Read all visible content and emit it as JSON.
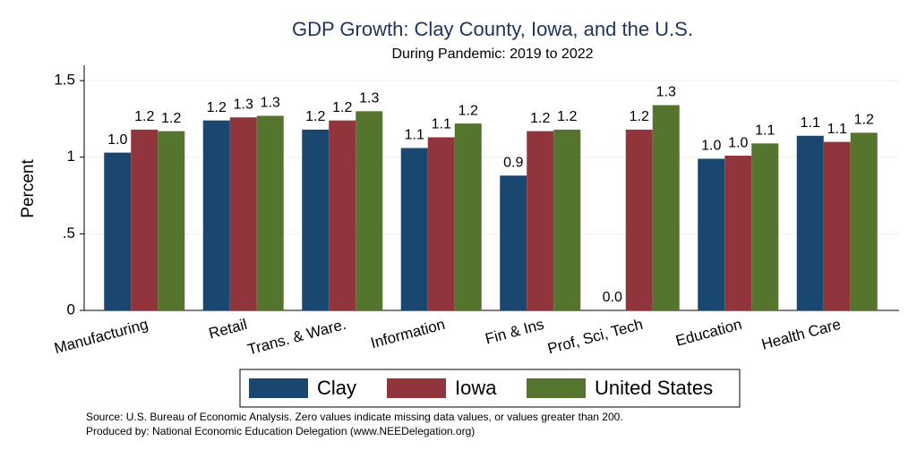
{
  "chart_data": {
    "type": "bar",
    "title": "GDP Growth: Clay County, Iowa, and the U.S.",
    "subtitle": "During Pandemic: 2019 to 2022",
    "y_label": "Percent",
    "categories": [
      "Manufacturing",
      "Retail",
      "Trans. & Ware.",
      "Information",
      "Fin & Ins",
      "Prof, Sci, Tech",
      "Education",
      "Health Care"
    ],
    "series": [
      {
        "name": "Clay",
        "color": "#1a476f",
        "values": [
          1.03,
          1.24,
          1.18,
          1.06,
          0.88,
          0,
          0.99,
          1.14
        ],
        "value_labels": [
          "1.0",
          "1.2",
          "1.2",
          "1.1",
          "0.9",
          "0.0",
          "1.0",
          "1.1"
        ]
      },
      {
        "name": "Iowa",
        "color": "#90353b",
        "values": [
          1.18,
          1.26,
          1.24,
          1.13,
          1.17,
          1.18,
          1.01,
          1.1
        ],
        "value_labels": [
          "1.2",
          "1.3",
          "1.2",
          "1.1",
          "1.2",
          "1.2",
          "1.0",
          "1.1"
        ]
      },
      {
        "name": "United States",
        "color": "#55752f",
        "values": [
          1.17,
          1.27,
          1.3,
          1.22,
          1.18,
          1.34,
          1.09,
          1.16
        ],
        "value_labels": [
          "1.2",
          "1.3",
          "1.3",
          "1.2",
          "1.2",
          "1.3",
          "1.1",
          "1.2"
        ]
      }
    ],
    "ylim": [
      0,
      1.6
    ],
    "yticks": [
      0,
      {
        "value": 0.5,
        "label": ".5"
      },
      1,
      1.5
    ],
    "grid": true,
    "legend_position": "bottom",
    "notes": [
      "Source: U.S. Bureau of Economic Analysis. Zero values indicate missing data values, or values greater than 200.",
      "Produced by: National Economic Education Delegation (www.NEEDelegation.org)"
    ]
  }
}
